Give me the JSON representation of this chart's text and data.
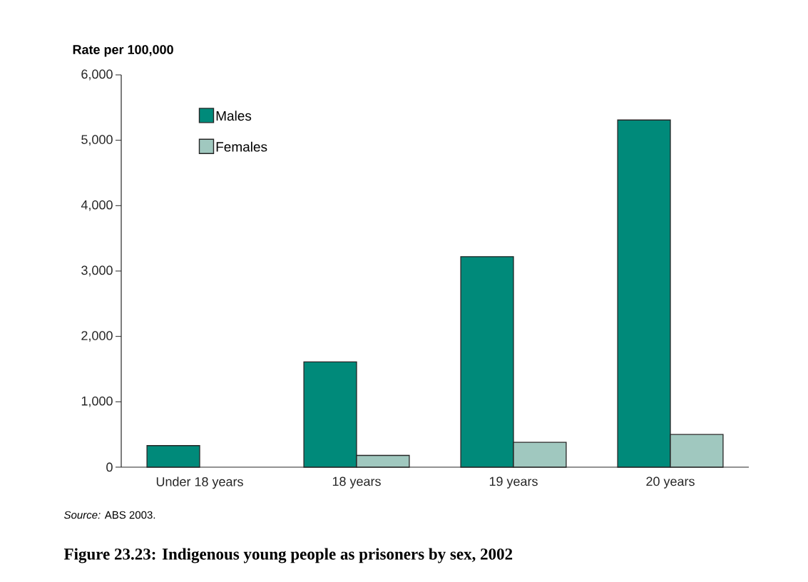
{
  "chart_data": {
    "type": "bar",
    "title": "Figure 23.23: Indigenous young people as prisoners by sex, 2002",
    "ylabel": "Rate per 100,000",
    "categories": [
      "Under 18 years",
      "18 years",
      "19 years",
      "20 years"
    ],
    "series": [
      {
        "name": "Males",
        "color": "#008a7a",
        "values": [
          330,
          1610,
          3220,
          5310
        ]
      },
      {
        "name": "Females",
        "color": "#a0c8bf",
        "values": [
          null,
          180,
          380,
          500
        ]
      }
    ],
    "ylim": [
      0,
      6000
    ],
    "yticks": [
      {
        "value": 0,
        "label": "0"
      },
      {
        "value": 1000,
        "label": "1,000"
      },
      {
        "value": 2000,
        "label": "2,000"
      },
      {
        "value": 3000,
        "label": "3,000"
      },
      {
        "value": 4000,
        "label": "4,000"
      },
      {
        "value": 5000,
        "label": "5,000"
      },
      {
        "value": 6000,
        "label": "6,000"
      }
    ],
    "legend": "top left",
    "grid": false,
    "annotations": [
      "*Source:* ABS 2003."
    ]
  }
}
